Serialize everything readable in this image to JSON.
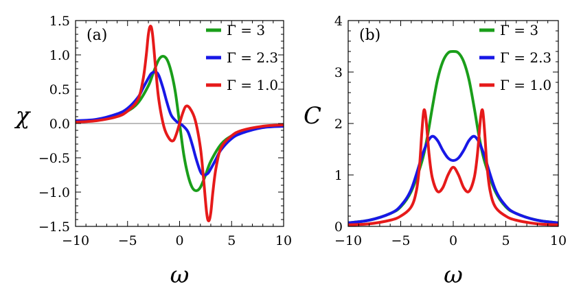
{
  "chart_data": [
    {
      "type": "line",
      "panel_tag": "(a)",
      "xlabel": "ω",
      "ylabel": "χ",
      "xlim": [
        -10,
        10
      ],
      "ylim": [
        -1.5,
        1.5
      ],
      "x_ticks": [
        -10,
        -5,
        0,
        5,
        10
      ],
      "x_tick_labels": [
        "−10",
        "−5",
        "0",
        "5",
        "10"
      ],
      "y_ticks": [
        -1.5,
        -1.0,
        -0.5,
        0.0,
        0.5,
        1.0,
        1.5
      ],
      "y_tick_labels": [
        "−1.5",
        "−1.0",
        "−0.5",
        "0.0",
        "0.5",
        "1.0",
        "1.5"
      ],
      "zero_line": true,
      "grid": false,
      "legend_position": "top-right",
      "series": [
        {
          "name": "Γ = 3",
          "color": "#1a9e1a",
          "x": [
            -10,
            -8,
            -6,
            -5,
            -4,
            -3,
            -2.5,
            -2,
            -1.6,
            -1.2,
            -0.8,
            -0.4,
            0,
            0.4,
            0.8,
            1.2,
            1.6,
            2,
            2.5,
            3,
            4,
            5,
            6,
            8,
            10
          ],
          "y": [
            0.03,
            0.05,
            0.12,
            0.18,
            0.3,
            0.55,
            0.75,
            0.93,
            0.98,
            0.93,
            0.75,
            0.45,
            0,
            -0.45,
            -0.75,
            -0.93,
            -0.98,
            -0.93,
            -0.75,
            -0.55,
            -0.3,
            -0.18,
            -0.12,
            -0.05,
            -0.03
          ]
        },
        {
          "name": "Γ = 2.3",
          "color": "#1818e6",
          "x": [
            -10,
            -8,
            -6,
            -5,
            -4,
            -3.5,
            -3,
            -2.7,
            -2.3,
            -2,
            -1.6,
            -1.2,
            -0.8,
            -0.3,
            0,
            0.3,
            0.8,
            1.2,
            1.6,
            2,
            2.3,
            2.7,
            3,
            3.5,
            4,
            5,
            6,
            8,
            10
          ],
          "y": [
            0.04,
            0.06,
            0.14,
            0.22,
            0.38,
            0.52,
            0.66,
            0.73,
            0.75,
            0.7,
            0.52,
            0.3,
            0.12,
            0.03,
            0,
            -0.03,
            -0.12,
            -0.3,
            -0.52,
            -0.7,
            -0.75,
            -0.73,
            -0.66,
            -0.52,
            -0.38,
            -0.22,
            -0.14,
            -0.06,
            -0.04
          ]
        },
        {
          "name": "Γ = 1.0",
          "color": "#e61a1a",
          "x": [
            -10,
            -8,
            -6,
            -5,
            -4,
            -3.5,
            -3.2,
            -3,
            -2.8,
            -2.6,
            -2.3,
            -2,
            -1.5,
            -1,
            -0.6,
            -0.3,
            0,
            0.3,
            0.6,
            1,
            1.5,
            2,
            2.3,
            2.6,
            2.8,
            3,
            3.2,
            3.5,
            4,
            5,
            6,
            8,
            10
          ],
          "y": [
            0.02,
            0.04,
            0.1,
            0.18,
            0.35,
            0.65,
            1.0,
            1.3,
            1.42,
            1.3,
            0.8,
            0.35,
            -0.05,
            -0.22,
            -0.25,
            -0.15,
            0,
            0.15,
            0.25,
            0.22,
            0.05,
            -0.35,
            -0.8,
            -1.3,
            -1.42,
            -1.3,
            -1.0,
            -0.65,
            -0.35,
            -0.18,
            -0.1,
            -0.04,
            -0.02
          ]
        }
      ]
    },
    {
      "type": "line",
      "panel_tag": "(b)",
      "xlabel": "ω",
      "ylabel": "C",
      "xlim": [
        -10,
        10
      ],
      "ylim": [
        0,
        4
      ],
      "x_ticks": [
        -10,
        -5,
        0,
        5,
        10
      ],
      "x_tick_labels": [
        "−10",
        "−5",
        "0",
        "5",
        "10"
      ],
      "y_ticks": [
        0,
        1,
        2,
        3,
        4
      ],
      "y_tick_labels": [
        "0",
        "1",
        "2",
        "3",
        "4"
      ],
      "zero_line": false,
      "grid": false,
      "legend_position": "top-right",
      "series": [
        {
          "name": "Γ = 3",
          "color": "#1a9e1a",
          "x": [
            -10,
            -8,
            -6,
            -5,
            -4,
            -3,
            -2.5,
            -2,
            -1.5,
            -1,
            -0.5,
            0,
            0.5,
            1,
            1.5,
            2,
            2.5,
            3,
            4,
            5,
            6,
            8,
            10
          ],
          "y": [
            0.07,
            0.12,
            0.25,
            0.38,
            0.68,
            1.25,
            1.7,
            2.3,
            2.85,
            3.2,
            3.37,
            3.4,
            3.37,
            3.2,
            2.85,
            2.3,
            1.7,
            1.25,
            0.68,
            0.38,
            0.25,
            0.12,
            0.07
          ]
        },
        {
          "name": "Γ = 2.3",
          "color": "#1818e6",
          "x": [
            -10,
            -8,
            -6,
            -5,
            -4,
            -3,
            -2.5,
            -2,
            -1.5,
            -1,
            -0.5,
            0,
            0.5,
            1,
            1.5,
            2,
            2.5,
            3,
            4,
            5,
            6,
            8,
            10
          ],
          "y": [
            0.07,
            0.12,
            0.25,
            0.4,
            0.72,
            1.35,
            1.62,
            1.75,
            1.67,
            1.48,
            1.33,
            1.28,
            1.33,
            1.48,
            1.67,
            1.75,
            1.62,
            1.35,
            0.72,
            0.4,
            0.25,
            0.12,
            0.07
          ]
        },
        {
          "name": "Γ = 1.0",
          "color": "#e61a1a",
          "x": [
            -10,
            -8,
            -6,
            -5,
            -4,
            -3.5,
            -3.2,
            -3,
            -2.8,
            -2.6,
            -2.3,
            -2,
            -1.5,
            -1,
            -0.5,
            0,
            0.5,
            1,
            1.5,
            2,
            2.3,
            2.6,
            2.8,
            3,
            3.2,
            3.5,
            4,
            5,
            6,
            8,
            10
          ],
          "y": [
            0.03,
            0.05,
            0.12,
            0.2,
            0.38,
            0.7,
            1.2,
            1.8,
            2.25,
            2.1,
            1.4,
            0.95,
            0.68,
            0.75,
            1.0,
            1.15,
            1.0,
            0.75,
            0.68,
            0.95,
            1.4,
            2.1,
            2.25,
            1.8,
            1.2,
            0.7,
            0.38,
            0.2,
            0.12,
            0.05,
            0.03
          ]
        }
      ]
    }
  ]
}
